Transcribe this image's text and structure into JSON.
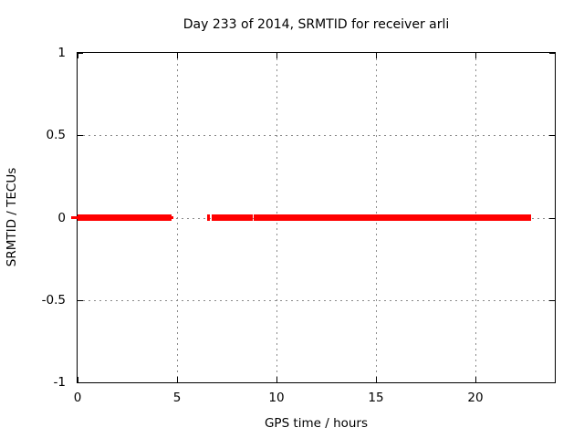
{
  "chart_data": {
    "type": "line",
    "title": "Day 233 of 2014, SRMTID for receiver arli",
    "xlabel": "GPS time / hours",
    "ylabel": "SRMTID / TECUs",
    "xlim": [
      0,
      24
    ],
    "ylim": [
      -1,
      1
    ],
    "grid": true,
    "legend_position": "none",
    "xticks": [
      {
        "value": 0,
        "label": "0"
      },
      {
        "value": 5,
        "label": "5"
      },
      {
        "value": 10,
        "label": "10"
      },
      {
        "value": 15,
        "label": "15"
      },
      {
        "value": 20,
        "label": "20"
      }
    ],
    "yticks": [
      {
        "value": 1,
        "label": "1"
      },
      {
        "value": 0.5,
        "label": "0.5"
      },
      {
        "value": 0,
        "label": "0"
      },
      {
        "value": -0.5,
        "label": "-0.5"
      },
      {
        "value": -1,
        "label": "-1"
      }
    ],
    "series": [
      {
        "name": "SRMTID",
        "color": "#ff0000",
        "style": "thick horizontal line at constant value",
        "y_value": 0,
        "segments_hours": [
          {
            "x1": -0.3,
            "x2": 0.05,
            "thin": true
          },
          {
            "x1": 0.0,
            "x2": 4.73,
            "thin": false
          },
          {
            "x1": 4.73,
            "x2": 4.83,
            "thin": true
          },
          {
            "x1": 6.51,
            "x2": 6.65,
            "thin": false
          },
          {
            "x1": 6.74,
            "x2": 8.79,
            "thin": false
          },
          {
            "x1": 8.86,
            "x2": 22.83,
            "thin": false
          }
        ]
      }
    ],
    "colors": {
      "line": "#ff0000",
      "grid": "#8a8a8a",
      "border": "#000000",
      "text": "#000000",
      "background": "#ffffff"
    }
  }
}
